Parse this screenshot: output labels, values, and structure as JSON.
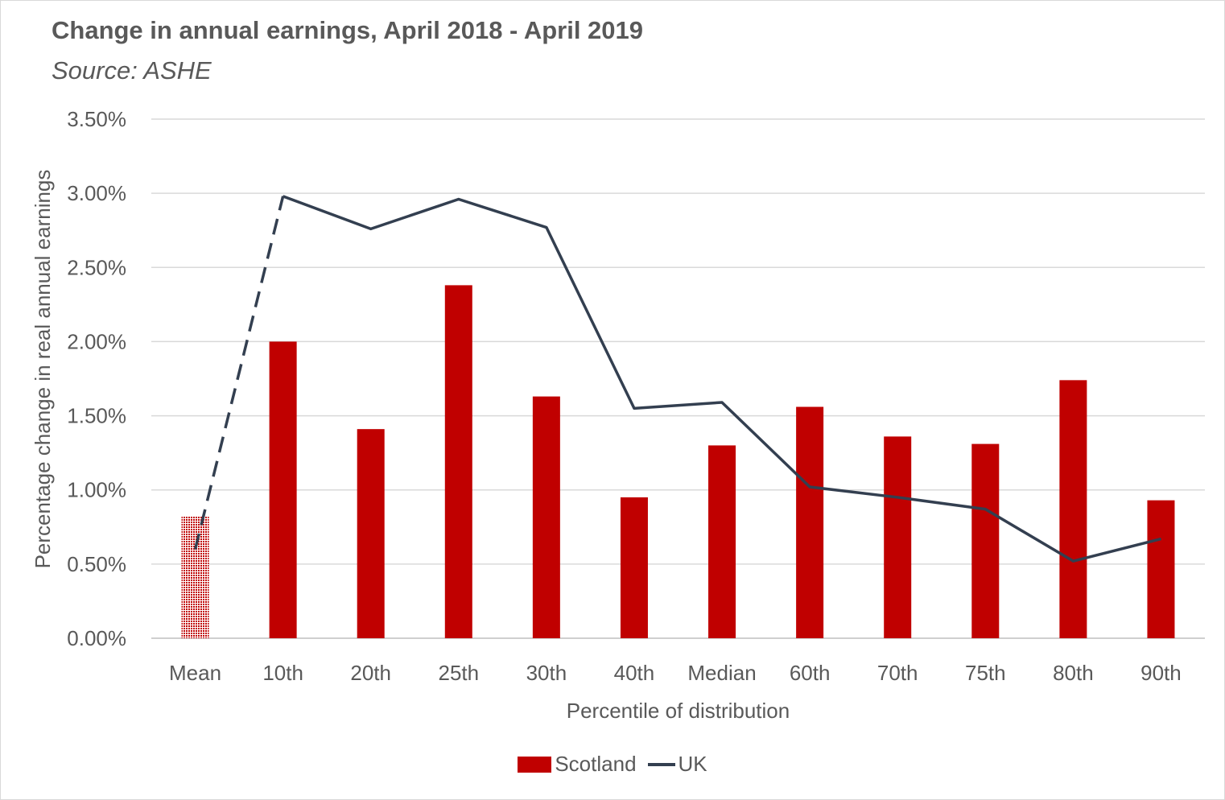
{
  "chart_data": {
    "type": "bar",
    "title": "Change in annual earnings, April 2018 - April 2019",
    "subtitle": "Source: ASHE",
    "xlabel": "Percentile of distribution",
    "ylabel": "Percentage change in real annual earnings",
    "categories": [
      "Mean",
      "10th",
      "20th",
      "25th",
      "30th",
      "40th",
      "Median",
      "60th",
      "70th",
      "75th",
      "80th",
      "90th"
    ],
    "ylim": [
      0,
      0.035
    ],
    "yticks": [
      0,
      0.005,
      0.01,
      0.015,
      0.02,
      0.025,
      0.03,
      0.035
    ],
    "ytick_labels": [
      "0.00%",
      "0.50%",
      "1.00%",
      "1.50%",
      "2.00%",
      "2.50%",
      "3.00%",
      "3.50%"
    ],
    "grid": true,
    "legend_position": "bottom",
    "series": [
      {
        "name": "Scotland",
        "type": "bar",
        "color": "#c00000",
        "values": [
          0.0082,
          0.02,
          0.0141,
          0.0238,
          0.0163,
          0.0095,
          0.013,
          0.0156,
          0.0136,
          0.0131,
          0.0174,
          0.0093
        ],
        "patterned_categories": [
          "Mean"
        ]
      },
      {
        "name": "UK",
        "type": "line",
        "color": "#333f50",
        "values": [
          0.006,
          0.0298,
          0.0276,
          0.0296,
          0.0277,
          0.0155,
          0.0159,
          0.0102,
          0.0095,
          0.0087,
          0.0052,
          0.0067
        ],
        "dashed_segments": [
          [
            0,
            1
          ]
        ]
      }
    ]
  }
}
